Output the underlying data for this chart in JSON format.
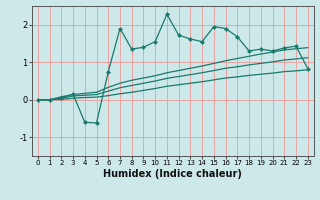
{
  "xlabel": "Humidex (Indice chaleur)",
  "x_values": [
    0,
    1,
    2,
    3,
    4,
    5,
    6,
    7,
    8,
    9,
    10,
    11,
    12,
    13,
    14,
    15,
    16,
    17,
    18,
    19,
    20,
    21,
    22,
    23
  ],
  "jagged_line": [
    0.0,
    0.0,
    0.05,
    0.15,
    -0.6,
    -0.62,
    0.75,
    1.9,
    1.35,
    1.4,
    1.55,
    2.28,
    1.72,
    1.62,
    1.55,
    1.95,
    1.9,
    1.68,
    1.3,
    1.35,
    1.3,
    1.38,
    1.43,
    0.83
  ],
  "line2": [
    0.0,
    0.0,
    0.08,
    0.14,
    0.17,
    0.2,
    0.33,
    0.44,
    0.52,
    0.58,
    0.64,
    0.72,
    0.78,
    0.84,
    0.9,
    0.97,
    1.04,
    1.1,
    1.16,
    1.22,
    1.27,
    1.33,
    1.36,
    1.39
  ],
  "line3": [
    0.0,
    0.0,
    0.04,
    0.1,
    0.12,
    0.14,
    0.23,
    0.32,
    0.38,
    0.44,
    0.5,
    0.57,
    0.62,
    0.67,
    0.72,
    0.78,
    0.84,
    0.88,
    0.93,
    0.97,
    1.01,
    1.06,
    1.09,
    1.12
  ],
  "line4": [
    0.0,
    0.0,
    0.01,
    0.04,
    0.06,
    0.07,
    0.11,
    0.16,
    0.2,
    0.25,
    0.3,
    0.36,
    0.4,
    0.44,
    0.48,
    0.53,
    0.58,
    0.61,
    0.65,
    0.68,
    0.71,
    0.75,
    0.77,
    0.8
  ],
  "line_color": "#1a7a6e",
  "bg_color": "#cce8e8",
  "grid_color": "#ee9999",
  "ylim": [
    -1.5,
    2.5
  ],
  "xlim": [
    -0.5,
    23.5
  ],
  "yticks": [
    -1,
    0,
    1,
    2
  ],
  "xticks": [
    0,
    1,
    2,
    3,
    4,
    5,
    6,
    7,
    8,
    9,
    10,
    11,
    12,
    13,
    14,
    15,
    16,
    17,
    18,
    19,
    20,
    21,
    22,
    23
  ]
}
